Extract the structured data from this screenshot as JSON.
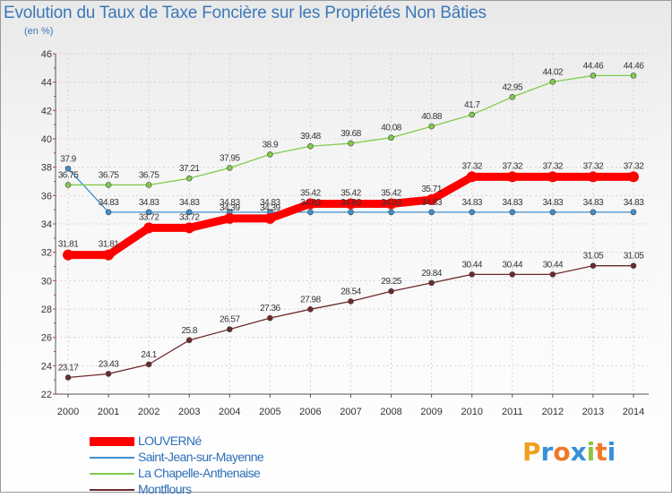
{
  "title": "Evolution du Taux de Taxe Foncière sur les Propriétés Non Bâties",
  "unit": "(en %)",
  "logo": {
    "text": "Proxiti",
    "letters": [
      {
        "ch": "P",
        "color": "#f0a020"
      },
      {
        "ch": "r",
        "color": "#3a8fd8"
      },
      {
        "ch": "o",
        "color": "#f07828"
      },
      {
        "ch": "x",
        "color": "#3a8fd8"
      },
      {
        "ch": "i",
        "color": "#8cc63e"
      },
      {
        "ch": "t",
        "color": "#f07828"
      },
      {
        "ch": "i",
        "color": "#3a8fd8"
      }
    ]
  },
  "chart_data": {
    "type": "line",
    "title": "Evolution du Taux de Taxe Foncière sur les Propriétés Non Bâties",
    "ylabel": "(en %)",
    "ylim": [
      22,
      46
    ],
    "yticks": [
      22,
      24,
      26,
      28,
      30,
      32,
      34,
      36,
      38,
      40,
      42,
      44,
      46
    ],
    "x": [
      "2000",
      "2001",
      "2002",
      "2003",
      "2004",
      "2005",
      "2006",
      "2007",
      "2008",
      "2009",
      "2010",
      "2011",
      "2012",
      "2013",
      "2014"
    ],
    "grid": true,
    "legend_position": "bottom-left",
    "series": [
      {
        "name": "LOUVERNé",
        "color": "#ff0000",
        "values": [
          31.81,
          31.81,
          33.72,
          33.72,
          34.39,
          34.39,
          35.42,
          35.42,
          35.42,
          35.71,
          37.32,
          37.32,
          37.32,
          37.32,
          37.32
        ],
        "labels": [
          "31.81",
          "31.81",
          "33.72",
          "33.72",
          "34.39",
          "34.39",
          "35.42",
          "35.42",
          "35.42",
          "35.71",
          "37.32",
          "37.32",
          "37.32",
          "37.32",
          "37.32"
        ]
      },
      {
        "name": "Saint-Jean-sur-Mayenne",
        "color": "#3f8fd0",
        "values": [
          37.9,
          34.83,
          34.83,
          34.83,
          34.83,
          34.83,
          34.83,
          34.83,
          34.83,
          34.83,
          34.83,
          34.83,
          34.83,
          34.83,
          34.83
        ],
        "labels": [
          "37.9",
          "34.83",
          "34.83",
          "34.83",
          "34.83",
          "34.83",
          "34.83",
          "34.83",
          "34.83",
          "34.83",
          "34.83",
          "34.83",
          "34.83",
          "34.83",
          "34.83"
        ]
      },
      {
        "name": "La Chapelle-Anthenaise",
        "color": "#80cc4c",
        "values": [
          36.75,
          36.75,
          36.75,
          37.21,
          37.95,
          38.9,
          39.48,
          39.68,
          40.08,
          40.88,
          41.7,
          42.95,
          44.02,
          44.46,
          44.46
        ],
        "labels": [
          "36.75",
          "36.75",
          "36.75",
          "37.21",
          "37.95",
          "38.9",
          "39.48",
          "39.68",
          "40.08",
          "40.88",
          "41.7",
          "42.95",
          "44.02",
          "44.46",
          "44.46"
        ]
      },
      {
        "name": "Montflours",
        "color": "#6e2a2a",
        "values": [
          23.17,
          23.43,
          24.1,
          25.8,
          26.57,
          27.36,
          27.98,
          28.54,
          29.25,
          29.84,
          30.44,
          30.44,
          30.44,
          31.05,
          31.05
        ],
        "labels": [
          "23.17",
          "23.43",
          "24.1",
          "25.8",
          "26.57",
          "27.36",
          "27.98",
          "28.54",
          "29.25",
          "29.84",
          "30.44",
          "30.44",
          "30.44",
          "31.05",
          "31.05"
        ]
      }
    ]
  }
}
